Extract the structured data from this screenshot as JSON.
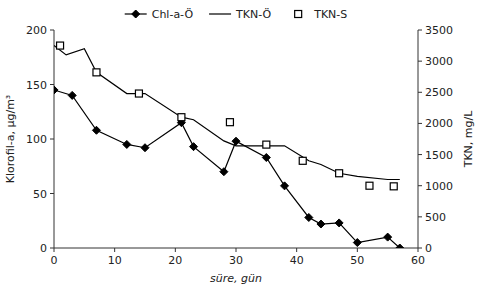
{
  "chart_data": {
    "type": "line",
    "x_label": "süre, gün",
    "y_label": "Klorofil-a, μg/m³",
    "y2_label": "TKN, mg/L",
    "xlim": [
      0,
      60
    ],
    "xticks": [
      0,
      10,
      20,
      30,
      40,
      50,
      60
    ],
    "ylim": [
      0,
      200
    ],
    "yticks": [
      0,
      50,
      100,
      150,
      200
    ],
    "y2lim": [
      0,
      3500
    ],
    "y2ticks": [
      0,
      500,
      1000,
      1500,
      2000,
      2500,
      3000,
      3500
    ],
    "grid": false,
    "legend": "top",
    "series": [
      {
        "name": "Chl-a-Ö",
        "color": "#000000",
        "marker": "diamond",
        "line_style": "solid",
        "x": [
          0,
          3,
          7,
          12,
          15,
          21,
          23,
          28,
          30,
          35,
          38,
          42,
          44,
          47,
          50,
          55,
          57
        ],
        "values": [
          145,
          140,
          108,
          95,
          92,
          115,
          93,
          70,
          98,
          83,
          57,
          28,
          22,
          23,
          5,
          10,
          0
        ]
      },
      {
        "name": "TKN-Ö",
        "color": "#000000",
        "marker": "none",
        "line_style": "solid",
        "axis": "y2",
        "x": [
          0,
          2,
          5,
          7,
          12,
          15,
          21,
          23,
          28,
          30,
          35,
          38,
          42,
          44,
          47,
          50,
          55,
          57
        ],
        "values": [
          3250,
          3100,
          3200,
          2820,
          2480,
          2480,
          2100,
          2060,
          1720,
          1640,
          1640,
          1640,
          1400,
          1340,
          1200,
          1150,
          1100,
          1100
        ]
      },
      {
        "name": "TKN-S",
        "color": "#000000",
        "marker": "square",
        "line_style": "none",
        "axis": "y2",
        "x": [
          1,
          7,
          14,
          21,
          29,
          35,
          41,
          47,
          52,
          56
        ],
        "values": [
          3250,
          2820,
          2480,
          2100,
          2020,
          1660,
          1400,
          1200,
          1000,
          990
        ]
      }
    ]
  }
}
